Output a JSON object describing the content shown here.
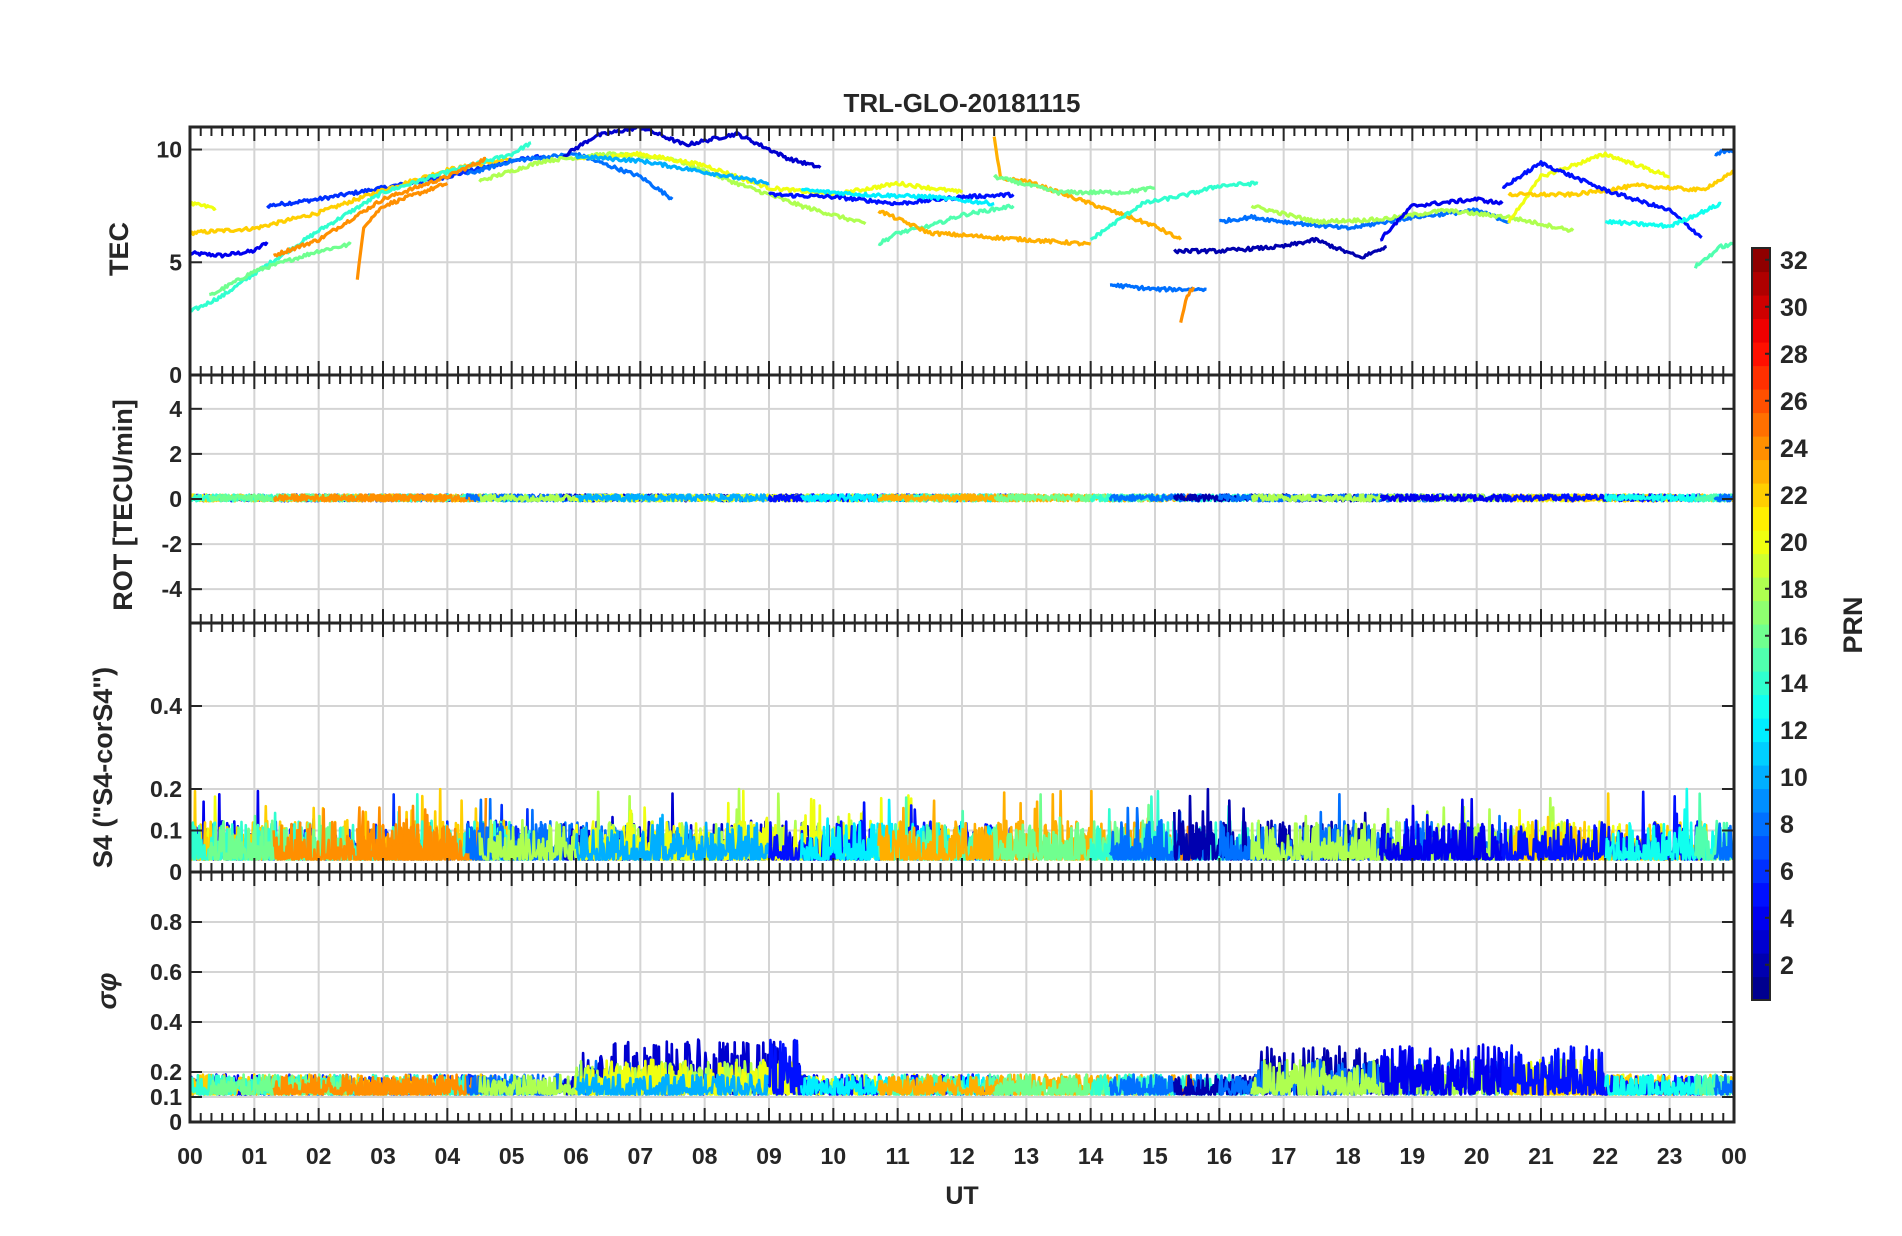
{
  "title": "TRL-GLO-20181115",
  "chart_data": {
    "type": "line",
    "title": "TRL-GLO-20181115",
    "xlabel": "UT",
    "xlim": [
      0,
      24
    ],
    "x_ticks": [
      0,
      1,
      2,
      3,
      4,
      5,
      6,
      7,
      8,
      9,
      10,
      11,
      12,
      13,
      14,
      15,
      16,
      17,
      18,
      19,
      20,
      21,
      22,
      23,
      24
    ],
    "x_tick_labels": [
      "00",
      "01",
      "02",
      "03",
      "04",
      "05",
      "06",
      "07",
      "08",
      "09",
      "10",
      "11",
      "12",
      "13",
      "14",
      "15",
      "16",
      "17",
      "18",
      "19",
      "20",
      "21",
      "22",
      "23",
      "00"
    ],
    "panels": [
      {
        "id": "tec",
        "ylabel": "TEC",
        "ylim": [
          0,
          11
        ],
        "y_ticks": [
          0,
          5,
          10
        ],
        "y_tick_labels": [
          "0",
          "5",
          "10"
        ],
        "series": [
          {
            "prn": 4,
            "x": [
              0.0,
              0.5,
              1.0,
              1.2
            ],
            "y": [
              5.4,
              5.3,
              5.5,
              5.9
            ]
          },
          {
            "prn": 6,
            "x": [
              1.2,
              2.0,
              3.0,
              4.0,
              5.0,
              5.5
            ],
            "y": [
              7.5,
              7.8,
              8.3,
              8.8,
              9.5,
              9.7
            ]
          },
          {
            "prn": 20,
            "x": [
              0.0,
              0.4
            ],
            "y": [
              7.6,
              7.4
            ]
          },
          {
            "prn": 22,
            "x": [
              0.0,
              1.0,
              2.0,
              3.0,
              4.0,
              5.0
            ],
            "y": [
              6.3,
              6.5,
              7.2,
              8.2,
              9.1,
              9.6
            ]
          },
          {
            "prn": 14,
            "x": [
              0.0,
              0.5,
              1.0,
              2.0,
              3.0,
              4.0,
              5.0,
              5.3
            ],
            "y": [
              2.8,
              3.5,
              4.5,
              6.4,
              8.1,
              9.0,
              9.8,
              10.3
            ]
          },
          {
            "prn": 16,
            "x": [
              0.3,
              1.0,
              2.0,
              2.5
            ],
            "y": [
              3.5,
              4.6,
              5.5,
              5.8
            ]
          },
          {
            "prn": 24,
            "x": [
              1.3,
              2.0,
              3.0,
              4.0,
              4.6
            ],
            "y": [
              5.3,
              6.0,
              7.8,
              8.8,
              9.6
            ]
          },
          {
            "prn": 24,
            "x": [
              2.6,
              2.7,
              3.0,
              4.0
            ],
            "y": [
              4.2,
              6.6,
              7.5,
              8.5
            ]
          },
          {
            "prn": 8,
            "x": [
              4.3,
              5.0,
              6.0,
              7.0,
              7.5
            ],
            "y": [
              8.9,
              9.5,
              9.8,
              8.8,
              7.8
            ]
          },
          {
            "prn": 3,
            "x": [
              5.8,
              6.3,
              7.0,
              7.7,
              8.5,
              9.3,
              9.8
            ],
            "y": [
              9.7,
              10.6,
              11.0,
              10.2,
              10.7,
              9.6,
              9.2
            ]
          },
          {
            "prn": 18,
            "x": [
              4.5,
              5.5,
              6.5,
              7.5,
              8.5,
              9.5,
              10.5
            ],
            "y": [
              8.6,
              9.5,
              9.8,
              9.6,
              8.5,
              7.5,
              6.7
            ]
          },
          {
            "prn": 20,
            "x": [
              6.0,
              7.0,
              8.0,
              9.0,
              10.0,
              11.0,
              12.0
            ],
            "y": [
              9.6,
              9.8,
              9.3,
              8.3,
              8.0,
              8.5,
              8.1
            ]
          },
          {
            "prn": 10,
            "x": [
              6.0,
              7.0,
              8.0,
              9.0
            ],
            "y": [
              9.7,
              9.5,
              9.0,
              8.5
            ]
          },
          {
            "prn": 5,
            "x": [
              9.0,
              10.0,
              11.0,
              12.0,
              12.8
            ],
            "y": [
              8.0,
              7.9,
              7.6,
              7.9,
              8.0
            ]
          },
          {
            "prn": 12,
            "x": [
              9.5,
              10.5,
              11.5,
              12.5
            ],
            "y": [
              8.2,
              8.0,
              7.9,
              7.6
            ]
          },
          {
            "prn": 15,
            "x": [
              10.7,
              11.0,
              11.5,
              12.0,
              12.8
            ],
            "y": [
              5.8,
              6.3,
              6.6,
              7.1,
              7.5
            ]
          },
          {
            "prn": 23,
            "x": [
              10.7,
              11.5,
              12.5,
              13.5,
              14.0
            ],
            "y": [
              7.3,
              6.3,
              6.1,
              5.9,
              5.8
            ]
          },
          {
            "prn": 23,
            "x": [
              12.5,
              12.6,
              13.0,
              14.0,
              15.0,
              15.4
            ],
            "y": [
              10.5,
              8.7,
              8.6,
              7.6,
              6.6,
              6.0
            ]
          },
          {
            "prn": 16,
            "x": [
              12.5,
              13.5,
              14.5,
              15.0
            ],
            "y": [
              8.8,
              8.1,
              8.1,
              8.3
            ]
          },
          {
            "prn": 14,
            "x": [
              14.0,
              14.8,
              15.5,
              16.0,
              16.6
            ],
            "y": [
              6.0,
              7.6,
              8.0,
              8.4,
              8.5
            ]
          },
          {
            "prn": 8,
            "x": [
              14.3,
              15.0,
              15.8
            ],
            "y": [
              4.0,
              3.8,
              3.8
            ]
          },
          {
            "prn": 24,
            "x": [
              15.4,
              15.5,
              15.6
            ],
            "y": [
              2.4,
              3.5,
              3.9
            ]
          },
          {
            "prn": 2,
            "x": [
              15.3,
              16.0,
              17.0,
              17.5,
              18.2,
              18.6
            ],
            "y": [
              5.5,
              5.5,
              5.7,
              6.0,
              5.2,
              5.7
            ]
          },
          {
            "prn": 8,
            "x": [
              16.0,
              16.5,
              17.0,
              18.0,
              19.0,
              20.0,
              20.5
            ],
            "y": [
              6.8,
              7.0,
              6.8,
              6.5,
              7.0,
              7.3,
              6.8
            ]
          },
          {
            "prn": 18,
            "x": [
              16.5,
              17.5,
              18.5,
              19.5,
              20.5,
              21.5
            ],
            "y": [
              7.5,
              6.8,
              6.9,
              7.3,
              7.0,
              6.4
            ]
          },
          {
            "prn": 4,
            "x": [
              18.5,
              19.0,
              20.0,
              20.4
            ],
            "y": [
              6.0,
              7.5,
              7.8,
              7.6
            ]
          },
          {
            "prn": 20,
            "x": [
              20.5,
              21.0,
              22.0,
              23.0
            ],
            "y": [
              6.8,
              8.8,
              9.8,
              8.8
            ]
          },
          {
            "prn": 22,
            "x": [
              20.5,
              21.5,
              22.5,
              23.5,
              24.0
            ],
            "y": [
              8.0,
              8.0,
              8.4,
              8.2,
              9.0
            ]
          },
          {
            "prn": 5,
            "x": [
              20.4,
              21.0,
              22.0,
              23.0,
              23.5
            ],
            "y": [
              8.3,
              9.4,
              8.2,
              7.3,
              6.1
            ]
          },
          {
            "prn": 13,
            "x": [
              22.0,
              23.0,
              23.8
            ],
            "y": [
              6.8,
              6.6,
              7.6
            ]
          },
          {
            "prn": 15,
            "x": [
              23.4,
              23.8,
              24.0
            ],
            "y": [
              4.8,
              5.7,
              5.8
            ]
          },
          {
            "prn": 8,
            "x": [
              23.7,
              24.0
            ],
            "y": [
              9.8,
              10.0
            ]
          }
        ]
      },
      {
        "id": "rot",
        "ylabel": "ROT [TECU/min]",
        "ylim": [
          -5.5,
          5.5
        ],
        "y_ticks": [
          -4,
          -2,
          0,
          2,
          4
        ],
        "y_tick_labels": [
          "-4",
          "-2",
          "0",
          "2",
          "4"
        ],
        "band_mean": 0.05,
        "band_amplitude": 0.15
      },
      {
        "id": "s4",
        "ylabel": "S4 (\"S4-corS4\")",
        "ylim": [
          0,
          0.6
        ],
        "y_ticks": [
          0,
          0.1,
          0.2,
          0.4
        ],
        "y_tick_labels": [
          "0",
          "0.1",
          "0.2",
          "0.4"
        ],
        "noise_baseline": 0.03,
        "noise_peak": 0.2
      },
      {
        "id": "sigma_phi",
        "ylabel": "σφ",
        "ylim": [
          0,
          1
        ],
        "y_ticks": [
          0,
          0.1,
          0.2,
          0.4,
          0.6,
          0.8
        ],
        "y_tick_labels": [
          "0",
          "0.1",
          "0.2",
          "0.4",
          "0.6",
          "0.8"
        ],
        "noise_baseline": 0.13,
        "enhanced_periods": [
          {
            "from": 6.0,
            "to": 9.5,
            "peak": 0.33
          },
          {
            "from": 16.6,
            "to": 22.0,
            "peak": 0.31
          }
        ]
      }
    ],
    "colorbar": {
      "label": "PRN",
      "colormap": "jet",
      "range": [
        1,
        32
      ],
      "levels": 32,
      "ticks": [
        2,
        4,
        6,
        8,
        10,
        12,
        14,
        16,
        18,
        20,
        22,
        24,
        26,
        28,
        30,
        32
      ],
      "tick_labels": [
        "2",
        "4",
        "6",
        "8",
        "10",
        "12",
        "14",
        "16",
        "18",
        "20",
        "22",
        "24",
        "26",
        "28",
        "30",
        "32"
      ]
    }
  }
}
